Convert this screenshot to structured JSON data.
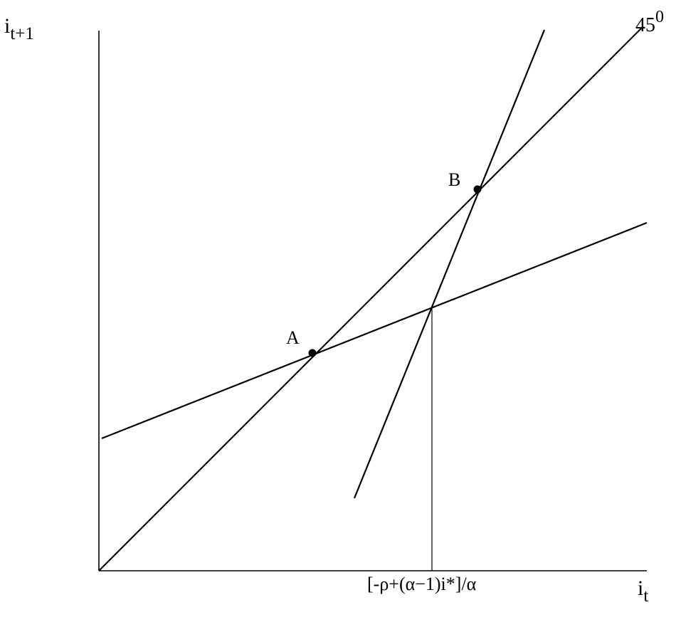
{
  "y_axis": {
    "base": "i",
    "sub": "t+1"
  },
  "x_axis": {
    "base": "i",
    "sub": "t"
  },
  "diagonal_label": {
    "base": "45",
    "sup": "0"
  },
  "x_tick_label": "[-ρ+(α−1)i*]/α",
  "points": {
    "a": "A",
    "b": "B"
  },
  "colors": {
    "ink": "#000000",
    "background": "#ffffff"
  }
}
